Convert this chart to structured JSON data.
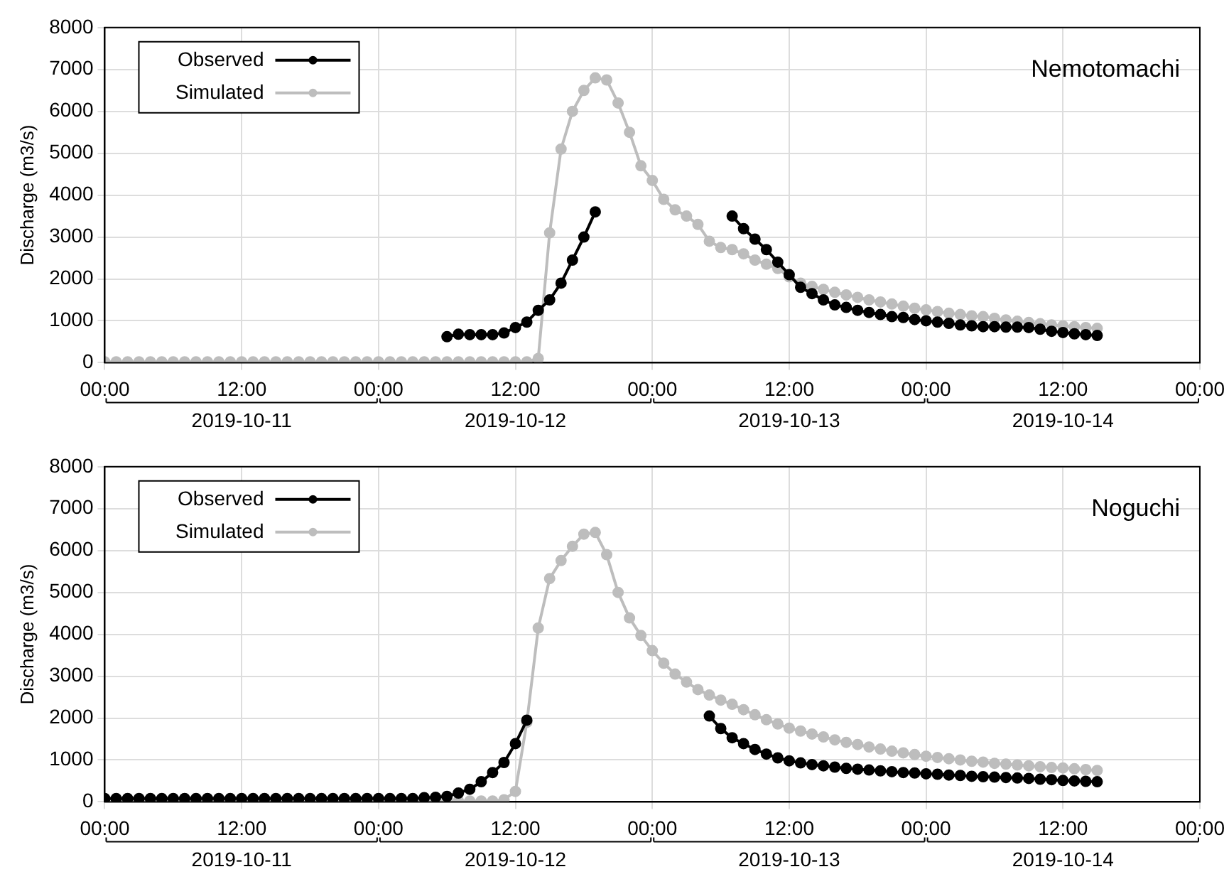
{
  "chart_data": [
    {
      "type": "line",
      "ylabel": "Discharge (m3/s)",
      "annotations": [
        "Nemotomachi"
      ],
      "legend": "top left",
      "grid": true,
      "marker": "circle",
      "line_style": "solid",
      "xlim": [
        "2019-10-11T00:00",
        "2019-10-15T00:00"
      ],
      "ylim": [
        0,
        8000
      ],
      "yticks": [
        0,
        1000,
        2000,
        3000,
        4000,
        5000,
        6000,
        7000,
        8000
      ],
      "xticks": [
        {
          "value": "2019-10-11T00:00",
          "label": "00:00"
        },
        {
          "value": "2019-10-11T12:00",
          "label": "12:00\n2019-10-11"
        },
        {
          "value": "2019-10-12T00:00",
          "label": "00:00"
        },
        {
          "value": "2019-10-12T12:00",
          "label": "12:00\n2019-10-12"
        },
        {
          "value": "2019-10-13T00:00",
          "label": "00:00"
        },
        {
          "value": "2019-10-13T12:00",
          "label": "12:00\n2019-10-13"
        },
        {
          "value": "2019-10-14T00:00",
          "label": "00:00"
        },
        {
          "value": "2019-10-14T12:00",
          "label": "12:00\n2019-10-14"
        },
        {
          "value": "2019-10-15T00:00",
          "label": "00:00"
        }
      ],
      "x": [
        "2019-10-11T00:00",
        "2019-10-11T01:00",
        "2019-10-11T02:00",
        "2019-10-11T03:00",
        "2019-10-11T04:00",
        "2019-10-11T05:00",
        "2019-10-11T06:00",
        "2019-10-11T07:00",
        "2019-10-11T08:00",
        "2019-10-11T09:00",
        "2019-10-11T10:00",
        "2019-10-11T11:00",
        "2019-10-11T12:00",
        "2019-10-11T13:00",
        "2019-10-11T14:00",
        "2019-10-11T15:00",
        "2019-10-11T16:00",
        "2019-10-11T17:00",
        "2019-10-11T18:00",
        "2019-10-11T19:00",
        "2019-10-11T20:00",
        "2019-10-11T21:00",
        "2019-10-11T22:00",
        "2019-10-11T23:00",
        "2019-10-12T00:00",
        "2019-10-12T01:00",
        "2019-10-12T02:00",
        "2019-10-12T03:00",
        "2019-10-12T04:00",
        "2019-10-12T05:00",
        "2019-10-12T06:00",
        "2019-10-12T07:00",
        "2019-10-12T08:00",
        "2019-10-12T09:00",
        "2019-10-12T10:00",
        "2019-10-12T11:00",
        "2019-10-12T12:00",
        "2019-10-12T13:00",
        "2019-10-12T14:00",
        "2019-10-12T15:00",
        "2019-10-12T16:00",
        "2019-10-12T17:00",
        "2019-10-12T18:00",
        "2019-10-12T19:00",
        "2019-10-12T20:00",
        "2019-10-12T21:00",
        "2019-10-12T22:00",
        "2019-10-12T23:00",
        "2019-10-13T00:00",
        "2019-10-13T01:00",
        "2019-10-13T02:00",
        "2019-10-13T03:00",
        "2019-10-13T04:00",
        "2019-10-13T05:00",
        "2019-10-13T06:00",
        "2019-10-13T07:00",
        "2019-10-13T08:00",
        "2019-10-13T09:00",
        "2019-10-13T10:00",
        "2019-10-13T11:00",
        "2019-10-13T12:00",
        "2019-10-13T13:00",
        "2019-10-13T14:00",
        "2019-10-13T15:00",
        "2019-10-13T16:00",
        "2019-10-13T17:00",
        "2019-10-13T18:00",
        "2019-10-13T19:00",
        "2019-10-13T20:00",
        "2019-10-13T21:00",
        "2019-10-13T22:00",
        "2019-10-13T23:00",
        "2019-10-14T00:00",
        "2019-10-14T01:00",
        "2019-10-14T02:00",
        "2019-10-14T03:00",
        "2019-10-14T04:00",
        "2019-10-14T05:00",
        "2019-10-14T06:00",
        "2019-10-14T07:00",
        "2019-10-14T08:00",
        "2019-10-14T09:00",
        "2019-10-14T10:00",
        "2019-10-14T11:00",
        "2019-10-14T12:00",
        "2019-10-14T13:00",
        "2019-10-14T14:00",
        "2019-10-14T15:00"
      ],
      "series": [
        {
          "name": "Observed",
          "color": "#000000",
          "values": [
            null,
            null,
            null,
            null,
            null,
            null,
            null,
            null,
            null,
            null,
            null,
            null,
            null,
            null,
            null,
            null,
            null,
            null,
            null,
            null,
            null,
            null,
            null,
            null,
            null,
            null,
            null,
            null,
            null,
            null,
            620,
            680,
            670,
            670,
            670,
            710,
            840,
            970,
            1250,
            1500,
            1900,
            2450,
            3000,
            3600,
            null,
            null,
            null,
            null,
            null,
            null,
            null,
            null,
            null,
            null,
            null,
            3500,
            3200,
            2950,
            2700,
            2400,
            2100,
            1800,
            1650,
            1500,
            1380,
            1320,
            1250,
            1200,
            1150,
            1100,
            1080,
            1030,
            1000,
            970,
            940,
            900,
            880,
            860,
            860,
            850,
            850,
            840,
            800,
            750,
            720,
            690,
            670,
            650
          ]
        },
        {
          "name": "Simulated",
          "color": "#bdbdbd",
          "values": [
            20,
            20,
            20,
            20,
            20,
            20,
            20,
            20,
            20,
            20,
            20,
            20,
            20,
            20,
            20,
            20,
            20,
            20,
            20,
            20,
            20,
            20,
            20,
            20,
            20,
            20,
            20,
            20,
            20,
            20,
            20,
            20,
            20,
            20,
            20,
            20,
            20,
            20,
            100,
            3100,
            5100,
            6000,
            6500,
            6800,
            6750,
            6200,
            5500,
            4700,
            4350,
            3900,
            3650,
            3500,
            3300,
            2900,
            2750,
            2700,
            2600,
            2450,
            2350,
            2250,
            2050,
            1900,
            1820,
            1750,
            1680,
            1620,
            1560,
            1500,
            1450,
            1400,
            1350,
            1300,
            1260,
            1220,
            1180,
            1150,
            1120,
            1100,
            1060,
            1020,
            990,
            960,
            930,
            900,
            880,
            860,
            840,
            820
          ]
        }
      ]
    },
    {
      "type": "line",
      "ylabel": "Discharge (m3/s)",
      "annotations": [
        "Noguchi"
      ],
      "legend": "top left",
      "grid": true,
      "marker": "circle",
      "line_style": "solid",
      "xlim": [
        "2019-10-11T00:00",
        "2019-10-15T00:00"
      ],
      "ylim": [
        0,
        8000
      ],
      "yticks": [
        0,
        1000,
        2000,
        3000,
        4000,
        5000,
        6000,
        7000,
        8000
      ],
      "xticks": [
        {
          "value": "2019-10-11T00:00",
          "label": "00:00"
        },
        {
          "value": "2019-10-11T12:00",
          "label": "12:00\n2019-10-11"
        },
        {
          "value": "2019-10-12T00:00",
          "label": "00:00"
        },
        {
          "value": "2019-10-12T12:00",
          "label": "12:00\n2019-10-12"
        },
        {
          "value": "2019-10-13T00:00",
          "label": "00:00"
        },
        {
          "value": "2019-10-13T12:00",
          "label": "12:00\n2019-10-13"
        },
        {
          "value": "2019-10-14T00:00",
          "label": "00:00"
        },
        {
          "value": "2019-10-14T12:00",
          "label": "12:00\n2019-10-14"
        },
        {
          "value": "2019-10-15T00:00",
          "label": "00:00"
        }
      ],
      "x": [
        "2019-10-11T00:00",
        "2019-10-11T01:00",
        "2019-10-11T02:00",
        "2019-10-11T03:00",
        "2019-10-11T04:00",
        "2019-10-11T05:00",
        "2019-10-11T06:00",
        "2019-10-11T07:00",
        "2019-10-11T08:00",
        "2019-10-11T09:00",
        "2019-10-11T10:00",
        "2019-10-11T11:00",
        "2019-10-11T12:00",
        "2019-10-11T13:00",
        "2019-10-11T14:00",
        "2019-10-11T15:00",
        "2019-10-11T16:00",
        "2019-10-11T17:00",
        "2019-10-11T18:00",
        "2019-10-11T19:00",
        "2019-10-11T20:00",
        "2019-10-11T21:00",
        "2019-10-11T22:00",
        "2019-10-11T23:00",
        "2019-10-12T00:00",
        "2019-10-12T01:00",
        "2019-10-12T02:00",
        "2019-10-12T03:00",
        "2019-10-12T04:00",
        "2019-10-12T05:00",
        "2019-10-12T06:00",
        "2019-10-12T07:00",
        "2019-10-12T08:00",
        "2019-10-12T09:00",
        "2019-10-12T10:00",
        "2019-10-12T11:00",
        "2019-10-12T12:00",
        "2019-10-12T13:00",
        "2019-10-12T14:00",
        "2019-10-12T15:00",
        "2019-10-12T16:00",
        "2019-10-12T17:00",
        "2019-10-12T18:00",
        "2019-10-12T19:00",
        "2019-10-12T20:00",
        "2019-10-12T21:00",
        "2019-10-12T22:00",
        "2019-10-12T23:00",
        "2019-10-13T00:00",
        "2019-10-13T01:00",
        "2019-10-13T02:00",
        "2019-10-13T03:00",
        "2019-10-13T04:00",
        "2019-10-13T05:00",
        "2019-10-13T06:00",
        "2019-10-13T07:00",
        "2019-10-13T08:00",
        "2019-10-13T09:00",
        "2019-10-13T10:00",
        "2019-10-13T11:00",
        "2019-10-13T12:00",
        "2019-10-13T13:00",
        "2019-10-13T14:00",
        "2019-10-13T15:00",
        "2019-10-13T16:00",
        "2019-10-13T17:00",
        "2019-10-13T18:00",
        "2019-10-13T19:00",
        "2019-10-13T20:00",
        "2019-10-13T21:00",
        "2019-10-13T22:00",
        "2019-10-13T23:00",
        "2019-10-14T00:00",
        "2019-10-14T01:00",
        "2019-10-14T02:00",
        "2019-10-14T03:00",
        "2019-10-14T04:00",
        "2019-10-14T05:00",
        "2019-10-14T06:00",
        "2019-10-14T07:00",
        "2019-10-14T08:00",
        "2019-10-14T09:00",
        "2019-10-14T10:00",
        "2019-10-14T11:00",
        "2019-10-14T12:00",
        "2019-10-14T13:00",
        "2019-10-14T14:00",
        "2019-10-14T15:00"
      ],
      "series": [
        {
          "name": "Observed",
          "color": "#000000",
          "values": [
            80,
            80,
            80,
            80,
            80,
            80,
            80,
            80,
            80,
            80,
            80,
            80,
            80,
            80,
            80,
            80,
            80,
            80,
            80,
            80,
            80,
            80,
            80,
            80,
            80,
            80,
            80,
            80,
            100,
            110,
            130,
            210,
            300,
            480,
            700,
            940,
            1390,
            1950,
            null,
            null,
            null,
            null,
            null,
            null,
            null,
            null,
            null,
            null,
            null,
            null,
            null,
            null,
            null,
            2050,
            1750,
            1530,
            1390,
            1250,
            1140,
            1050,
            980,
            930,
            890,
            860,
            830,
            800,
            780,
            760,
            740,
            720,
            700,
            690,
            670,
            660,
            640,
            630,
            610,
            600,
            590,
            580,
            570,
            560,
            540,
            530,
            510,
            500,
            490,
            480
          ]
        },
        {
          "name": "Simulated",
          "color": "#bdbdbd",
          "values": [
            20,
            20,
            20,
            20,
            20,
            20,
            20,
            20,
            20,
            20,
            20,
            20,
            20,
            20,
            20,
            20,
            20,
            20,
            20,
            20,
            20,
            20,
            20,
            20,
            20,
            20,
            20,
            20,
            20,
            20,
            20,
            20,
            20,
            20,
            20,
            50,
            250,
            1900,
            4150,
            5330,
            5760,
            6100,
            6390,
            6430,
            5900,
            5000,
            4390,
            3970,
            3610,
            3310,
            3050,
            2860,
            2680,
            2550,
            2430,
            2330,
            2200,
            2080,
            1960,
            1860,
            1760,
            1690,
            1620,
            1550,
            1480,
            1420,
            1370,
            1310,
            1260,
            1210,
            1170,
            1130,
            1090,
            1060,
            1030,
            1000,
            970,
            950,
            920,
            900,
            880,
            860,
            840,
            820,
            810,
            790,
            770,
            750
          ]
        }
      ]
    }
  ]
}
